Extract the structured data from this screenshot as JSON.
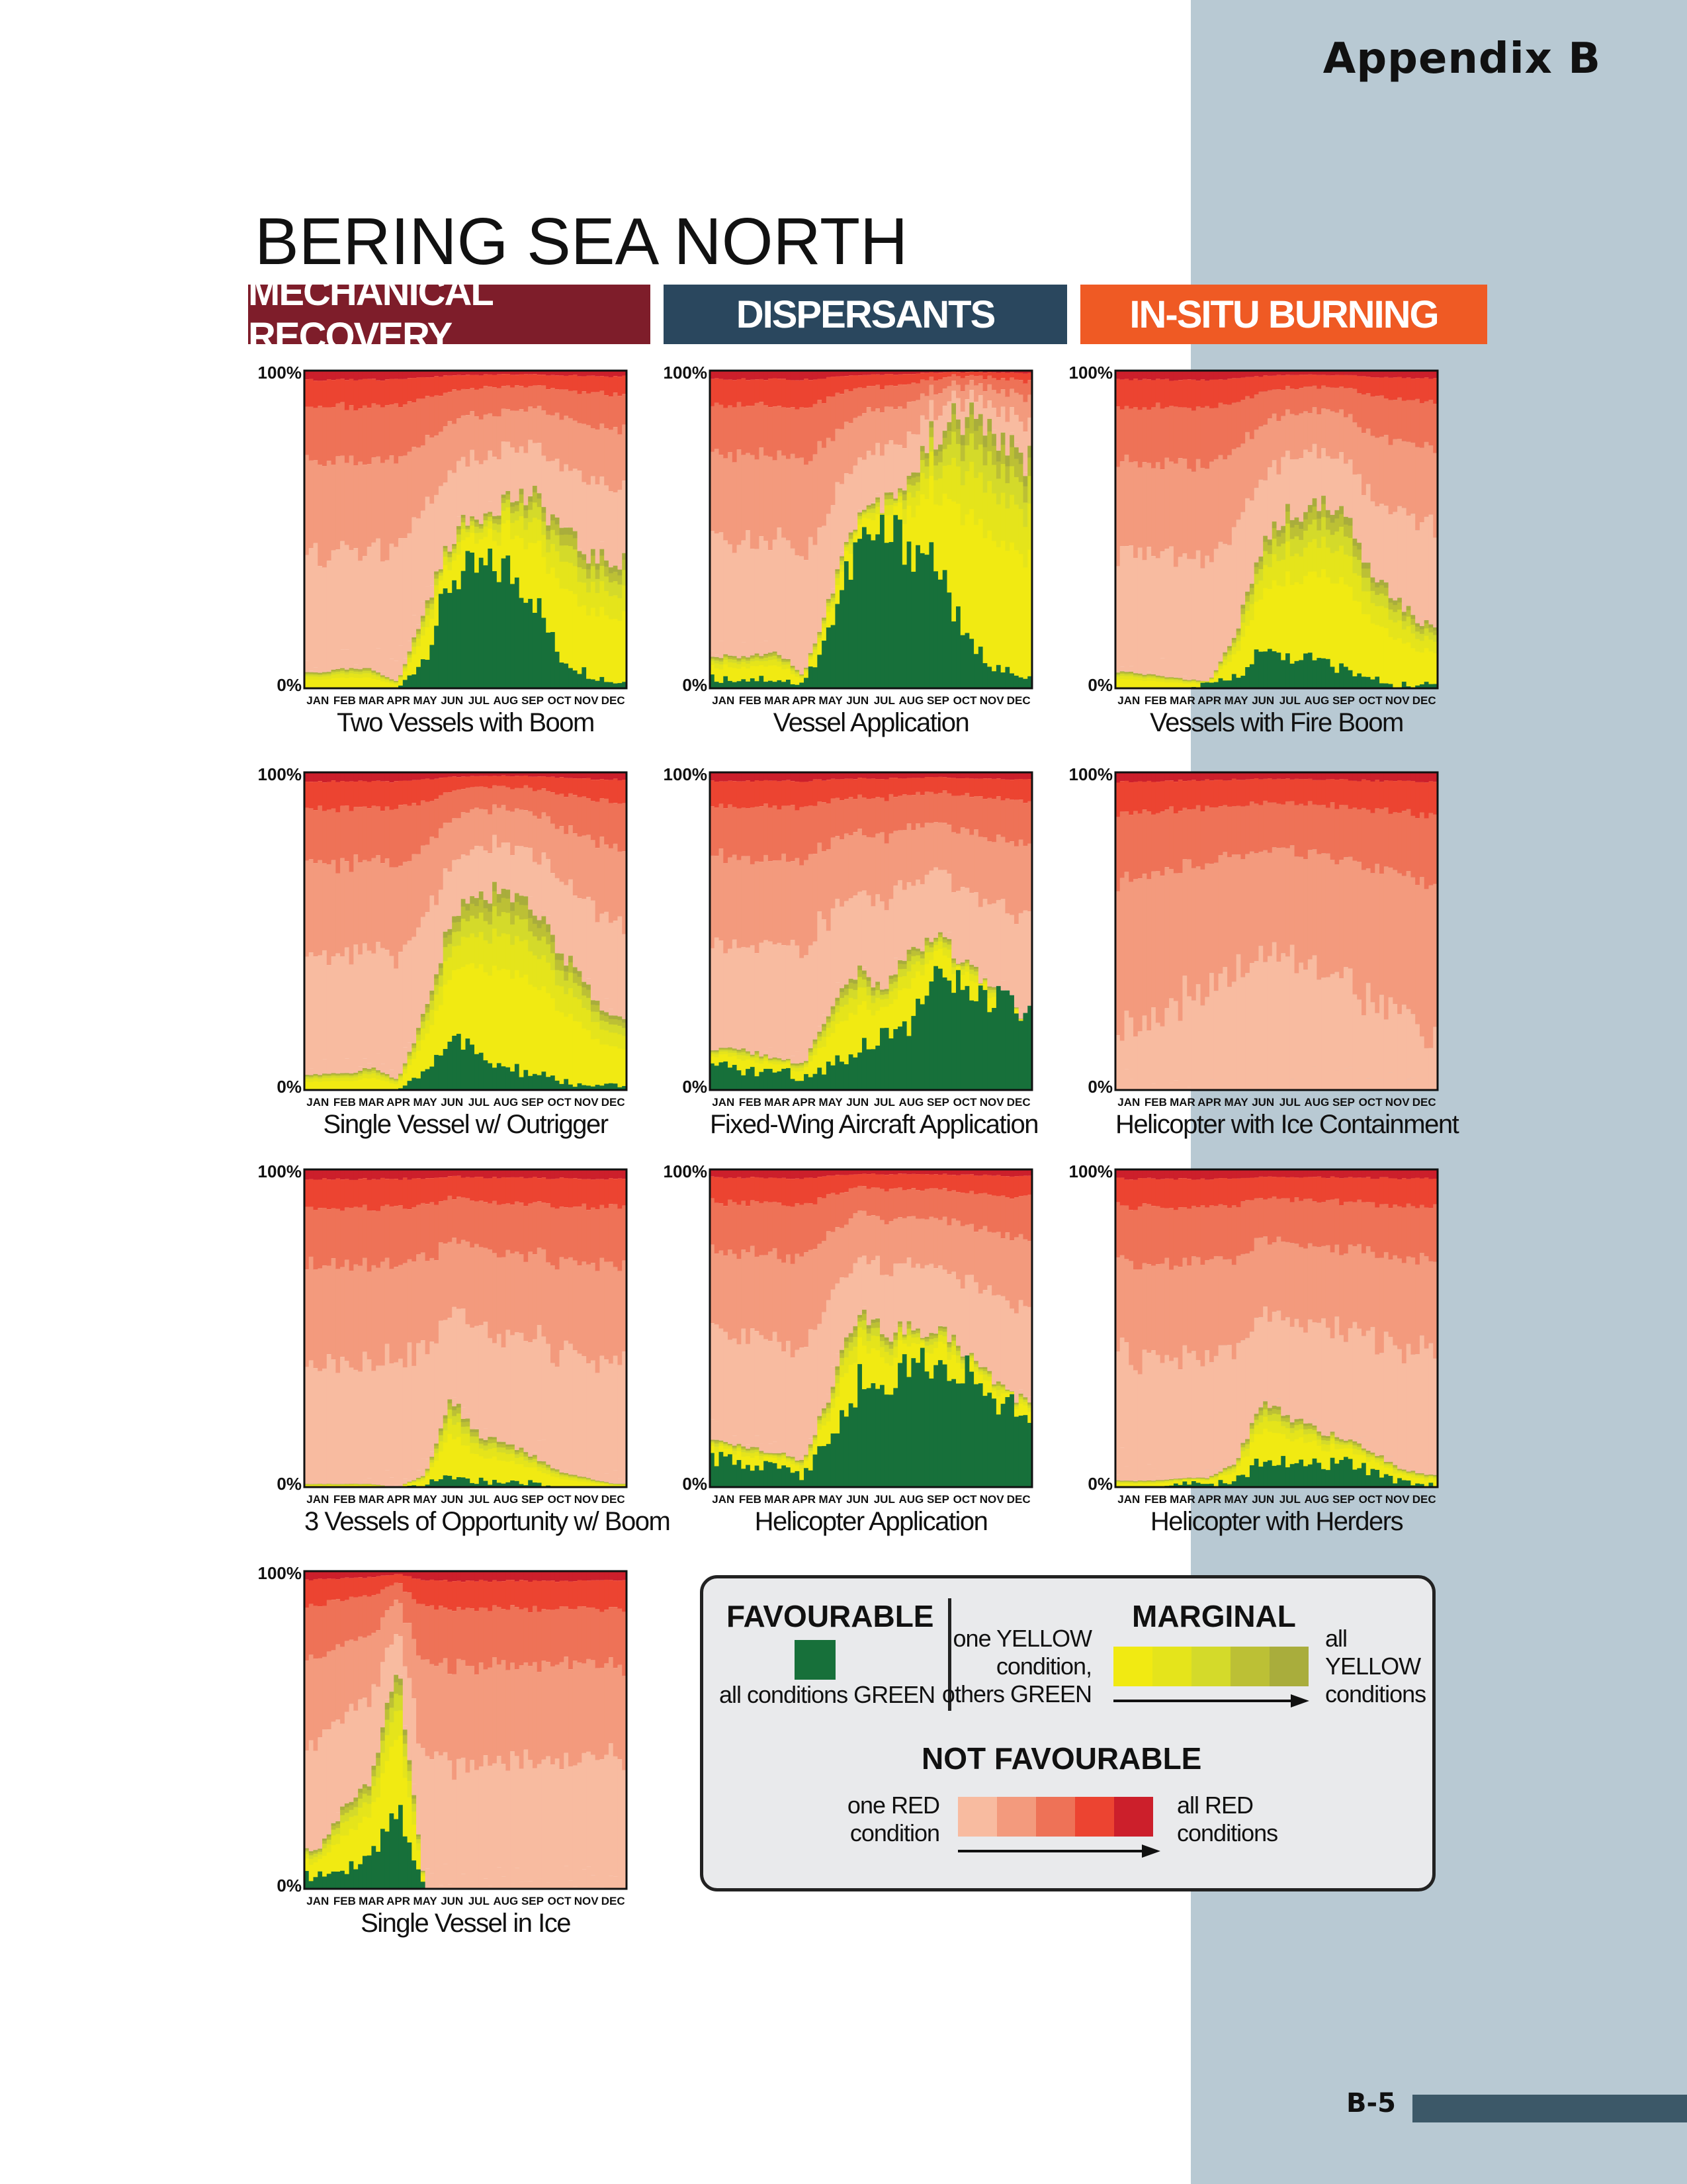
{
  "header": {
    "appendix": "Appendix B",
    "page": "B-5"
  },
  "title": "BERING SEA NORTH",
  "categories": [
    {
      "label": "MECHANICAL RECOVERY",
      "color": "#7e1d2a"
    },
    {
      "label": "DISPERSANTS",
      "color": "#2a475e"
    },
    {
      "label": "IN-SITU BURNING",
      "color": "#ef5a24"
    }
  ],
  "colors": {
    "green": "#17703a",
    "yellow": [
      "#f1ea12",
      "#e5e41b",
      "#d4da2a",
      "#bcc035",
      "#a9ad3c"
    ],
    "red": [
      "#f8bba0",
      "#f39a7d",
      "#ee7257",
      "#ec4431",
      "#cc1f2b"
    ],
    "sidebar": "#b8c9d3",
    "pagebar": "#3c5868"
  },
  "axis": {
    "y_top": "100%",
    "y_bottom": "0%",
    "months": [
      "JAN",
      "FEB",
      "MAR",
      "APR",
      "MAY",
      "JUN",
      "JUL",
      "AUG",
      "SEP",
      "OCT",
      "NOV",
      "DEC"
    ]
  },
  "chart_data": [
    {
      "type": "area",
      "title": "Two Vessels with Boom",
      "column": 0,
      "row": 0,
      "x": [
        1,
        2,
        3,
        4,
        5,
        6,
        7,
        8,
        9,
        10,
        11,
        12
      ],
      "ylim": [
        0,
        100
      ],
      "series": [
        {
          "name": "all conditions GREEN",
          "values": [
            0,
            0,
            0,
            0,
            10,
            35,
            37,
            38,
            30,
            10,
            5,
            2
          ]
        },
        {
          "name": "MARGINAL",
          "values": [
            5,
            6,
            6,
            2,
            25,
            48,
            55,
            60,
            60,
            52,
            42,
            40
          ]
        },
        {
          "name": "NOT FAVOURABLE",
          "values": [
            95,
            94,
            94,
            98,
            75,
            52,
            45,
            40,
            40,
            48,
            58,
            60
          ]
        }
      ]
    },
    {
      "type": "area",
      "title": "Vessel Application",
      "column": 1,
      "row": 0,
      "x": [
        1,
        2,
        3,
        4,
        5,
        6,
        7,
        8,
        9,
        10,
        11,
        12
      ],
      "ylim": [
        0,
        100
      ],
      "series": [
        {
          "name": "all conditions GREEN",
          "values": [
            3,
            3,
            3,
            1,
            20,
            45,
            48,
            46,
            40,
            15,
            8,
            3
          ]
        },
        {
          "name": "MARGINAL",
          "values": [
            10,
            10,
            12,
            4,
            30,
            55,
            60,
            67,
            82,
            85,
            82,
            72
          ]
        },
        {
          "name": "NOT FAVOURABLE",
          "values": [
            90,
            90,
            88,
            96,
            70,
            45,
            40,
            33,
            18,
            15,
            18,
            28
          ]
        }
      ]
    },
    {
      "type": "area",
      "title": "Vessels with Fire Boom",
      "column": 2,
      "row": 0,
      "x": [
        1,
        2,
        3,
        4,
        5,
        6,
        7,
        8,
        9,
        10,
        11,
        12
      ],
      "ylim": [
        0,
        100
      ],
      "series": [
        {
          "name": "all conditions GREEN",
          "values": [
            0,
            0,
            0,
            1,
            4,
            12,
            10,
            9,
            6,
            3,
            1,
            1
          ]
        },
        {
          "name": "MARGINAL",
          "values": [
            5,
            4,
            3,
            2,
            18,
            45,
            55,
            58,
            55,
            38,
            28,
            20
          ]
        },
        {
          "name": "NOT FAVOURABLE",
          "values": [
            95,
            96,
            97,
            98,
            82,
            55,
            45,
            42,
            45,
            62,
            72,
            80
          ]
        }
      ]
    },
    {
      "type": "area",
      "title": "Single Vessel w/ Outrigger",
      "column": 0,
      "row": 1,
      "x": [
        1,
        2,
        3,
        4,
        5,
        6,
        7,
        8,
        9,
        10,
        11,
        12
      ],
      "ylim": [
        0,
        100
      ],
      "series": [
        {
          "name": "all conditions GREEN",
          "values": [
            0,
            0,
            0,
            0,
            6,
            18,
            10,
            7,
            5,
            3,
            1,
            1
          ]
        },
        {
          "name": "MARGINAL",
          "values": [
            5,
            5,
            7,
            3,
            25,
            55,
            60,
            65,
            58,
            45,
            32,
            22
          ]
        },
        {
          "name": "NOT FAVOURABLE",
          "values": [
            95,
            95,
            93,
            97,
            75,
            45,
            40,
            35,
            42,
            55,
            68,
            78
          ]
        }
      ]
    },
    {
      "type": "area",
      "title": "Fixed-Wing Aircraft Application",
      "column": 1,
      "row": 1,
      "x": [
        1,
        2,
        3,
        4,
        5,
        6,
        7,
        8,
        9,
        10,
        11,
        12
      ],
      "ylim": [
        0,
        100
      ],
      "series": [
        {
          "name": "all conditions GREEN",
          "values": [
            7,
            6,
            6,
            4,
            8,
            13,
            18,
            22,
            34,
            32,
            28,
            25
          ]
        },
        {
          "name": "MARGINAL",
          "values": [
            13,
            12,
            10,
            8,
            25,
            37,
            33,
            42,
            48,
            40,
            32,
            24
          ]
        },
        {
          "name": "NOT FAVOURABLE",
          "values": [
            87,
            88,
            90,
            92,
            75,
            63,
            67,
            58,
            52,
            60,
            68,
            76
          ]
        }
      ]
    },
    {
      "type": "area",
      "title": "Helicopter with Ice  Containment",
      "column": 2,
      "row": 1,
      "x": [
        1,
        2,
        3,
        4,
        5,
        6,
        7,
        8,
        9,
        10,
        11,
        12
      ],
      "ylim": [
        0,
        100
      ],
      "series": [
        {
          "name": "all conditions GREEN",
          "values": [
            0,
            0,
            0,
            0,
            0,
            0,
            0,
            0,
            0,
            0,
            0,
            0
          ]
        },
        {
          "name": "MARGINAL",
          "values": [
            0,
            0,
            0,
            0,
            0,
            0,
            0,
            0,
            0,
            0,
            0,
            0
          ]
        },
        {
          "name": "NOT FAVOURABLE",
          "values": [
            100,
            100,
            100,
            100,
            100,
            100,
            100,
            100,
            100,
            100,
            100,
            100
          ]
        }
      ]
    },
    {
      "type": "area",
      "title": "3 Vessels of Opportunity w/ Boom",
      "column": 0,
      "row": 2,
      "x": [
        1,
        2,
        3,
        4,
        5,
        6,
        7,
        8,
        9,
        10,
        11,
        12
      ],
      "ylim": [
        0,
        100
      ],
      "series": [
        {
          "name": "all conditions GREEN",
          "values": [
            0,
            0,
            0,
            0,
            1,
            3,
            2,
            2,
            1,
            0,
            0,
            0
          ]
        },
        {
          "name": "MARGINAL",
          "values": [
            1,
            1,
            1,
            0,
            4,
            28,
            16,
            14,
            10,
            5,
            3,
            1
          ]
        },
        {
          "name": "NOT FAVOURABLE",
          "values": [
            99,
            99,
            99,
            100,
            96,
            72,
            84,
            86,
            90,
            95,
            97,
            99
          ]
        }
      ]
    },
    {
      "type": "area",
      "title": "Helicopter Application",
      "column": 1,
      "row": 2,
      "x": [
        1,
        2,
        3,
        4,
        5,
        6,
        7,
        8,
        9,
        10,
        11,
        12
      ],
      "ylim": [
        0,
        100
      ],
      "series": [
        {
          "name": "all conditions GREEN",
          "values": [
            9,
            7,
            8,
            3,
            18,
            32,
            34,
            37,
            43,
            35,
            28,
            23
          ]
        },
        {
          "name": "MARGINAL",
          "values": [
            14,
            12,
            11,
            8,
            30,
            55,
            48,
            50,
            50,
            42,
            35,
            28
          ]
        },
        {
          "name": "NOT FAVOURABLE",
          "values": [
            86,
            88,
            89,
            92,
            70,
            45,
            52,
            50,
            50,
            58,
            65,
            72
          ]
        }
      ]
    },
    {
      "type": "area",
      "title": "Helicopter with Herders",
      "column": 2,
      "row": 2,
      "x": [
        1,
        2,
        3,
        4,
        5,
        6,
        7,
        8,
        9,
        10,
        11,
        12
      ],
      "ylim": [
        0,
        100
      ],
      "series": [
        {
          "name": "all conditions GREEN",
          "values": [
            0,
            0,
            1,
            1,
            2,
            9,
            7,
            7,
            8,
            5,
            2,
            1
          ]
        },
        {
          "name": "MARGINAL",
          "values": [
            2,
            2,
            3,
            3,
            8,
            28,
            22,
            18,
            16,
            12,
            6,
            4
          ]
        },
        {
          "name": "NOT FAVOURABLE",
          "values": [
            98,
            98,
            97,
            97,
            92,
            72,
            78,
            82,
            84,
            88,
            94,
            96
          ]
        }
      ]
    },
    {
      "type": "area",
      "title": "Single Vessel in Ice",
      "column": 0,
      "row": 3,
      "x": [
        1,
        2,
        3,
        4,
        5,
        6,
        7,
        8,
        9,
        10,
        11,
        12
      ],
      "ylim": [
        0,
        100
      ],
      "series": [
        {
          "name": "all conditions GREEN",
          "values": [
            4,
            6,
            10,
            25,
            0,
            0,
            0,
            0,
            0,
            0,
            0,
            0
          ]
        },
        {
          "name": "MARGINAL",
          "values": [
            12,
            26,
            34,
            72,
            0,
            0,
            0,
            0,
            0,
            0,
            0,
            0
          ]
        },
        {
          "name": "NOT FAVOURABLE",
          "values": [
            88,
            74,
            66,
            28,
            100,
            100,
            100,
            100,
            100,
            100,
            100,
            100
          ]
        }
      ]
    }
  ],
  "legend": {
    "favourable": {
      "title": "FAVOURABLE",
      "label": "all conditions GREEN"
    },
    "marginal": {
      "title": "MARGINAL",
      "left_label": "one YELLOW condition, others GREEN",
      "left_lines": [
        "one YELLOW",
        "condition,",
        "others GREEN"
      ],
      "right_lines": [
        "all",
        "YELLOW",
        "conditions"
      ]
    },
    "not_favourable": {
      "title": "NOT FAVOURABLE",
      "left_lines": [
        "one RED",
        "condition"
      ],
      "right_lines": [
        "all RED",
        "conditions"
      ]
    }
  }
}
